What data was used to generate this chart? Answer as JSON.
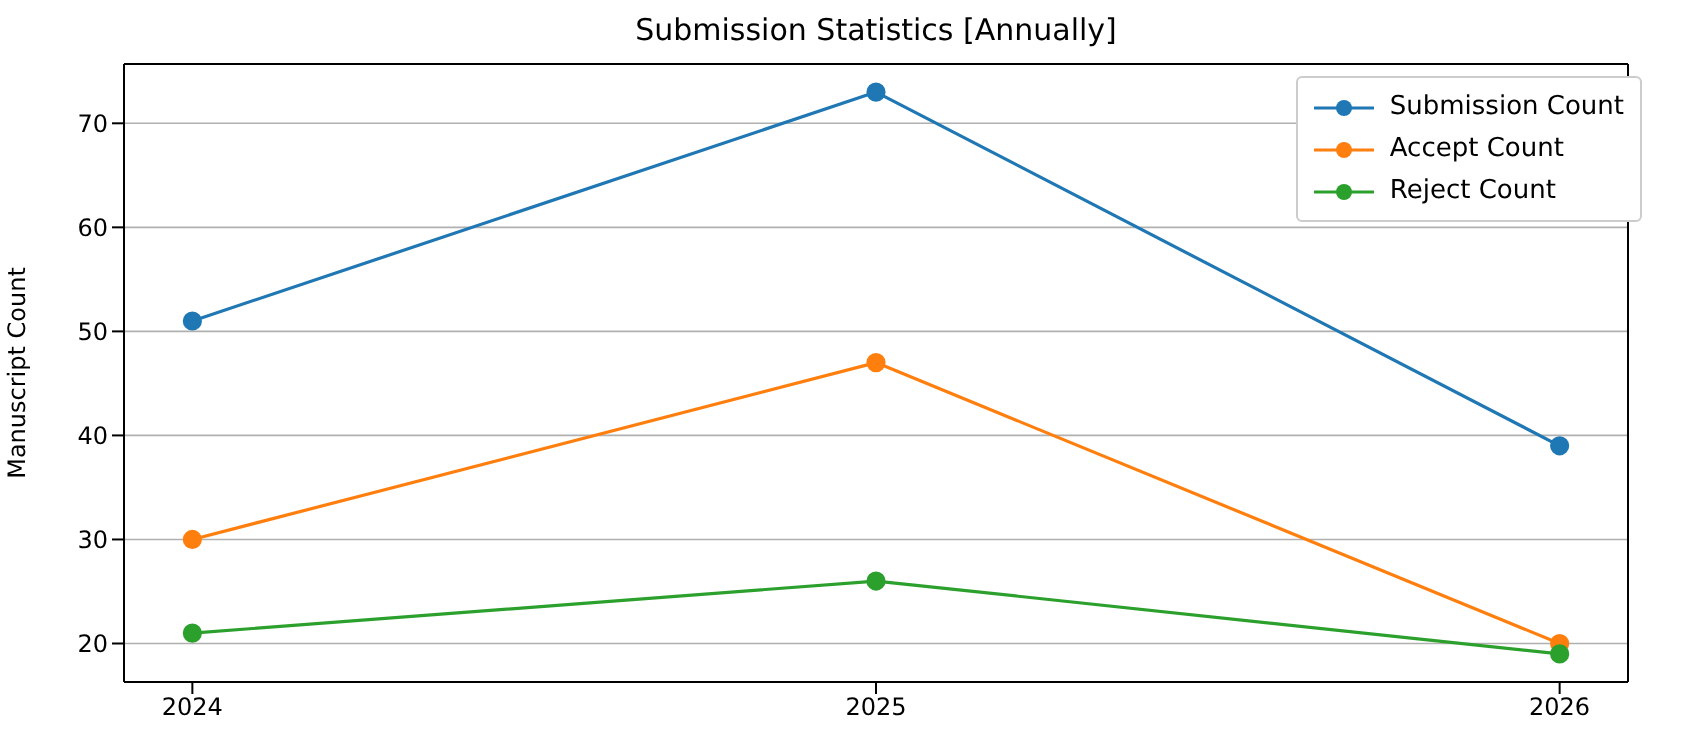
{
  "chart_data": {
    "type": "line",
    "title": "Submission Statistics [Annually]",
    "ylabel": "Manuscript Count",
    "x": [
      2024,
      2025,
      2026
    ],
    "xlim": [
      2023.9,
      2026.1
    ],
    "xticks": [
      2024,
      2025,
      2026
    ],
    "ylim": [
      16.3,
      75.7
    ],
    "yticks": [
      20,
      30,
      40,
      50,
      60,
      70
    ],
    "grid": "y",
    "legend": "top right",
    "marker": "circle",
    "line_style": "solid",
    "series": [
      {
        "name": "Submission Count",
        "color": "#1f77b4",
        "values": [
          51,
          73,
          39
        ]
      },
      {
        "name": "Accept Count",
        "color": "#ff7f0e",
        "values": [
          30,
          47,
          20
        ]
      },
      {
        "name": "Reject Count",
        "color": "#2ca02c",
        "values": [
          21,
          26,
          19
        ]
      }
    ]
  }
}
